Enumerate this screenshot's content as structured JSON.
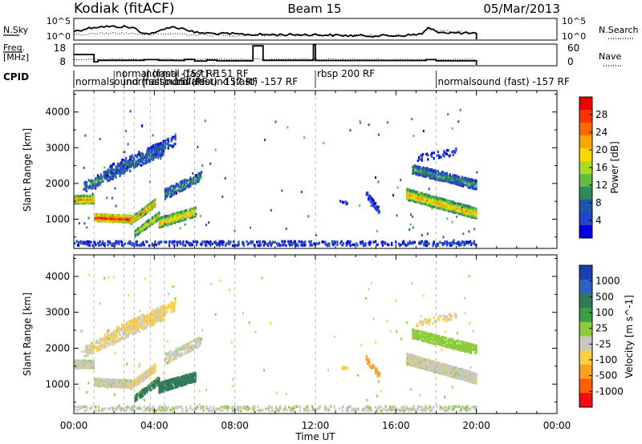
{
  "header": {
    "station": "Kodiak (fitACF)",
    "beam": "Beam 15",
    "date": "05/Mar/2013"
  },
  "sky_panel": {
    "left_label": "N.Sky",
    "right_label": "N.Search",
    "left_ticks": [
      "10^5",
      "10^0"
    ],
    "right_ticks": [
      "10^5",
      "10^0"
    ],
    "solid_line_levels": [
      0.4,
      0.6,
      0.62,
      0.62,
      0.55,
      0.3,
      0.3,
      0.55,
      0.6,
      0.52,
      0.35,
      0.3,
      0.28,
      0.25,
      0.25,
      0.25,
      0.25,
      0.22,
      0.2,
      0.2,
      0.2,
      0.22,
      0.25,
      0.3,
      0.55,
      0.4,
      0.35,
      0.33,
      0.3
    ],
    "dotted_line_levels": [
      0.22,
      0.3,
      0.32,
      0.32,
      0.3,
      0.25,
      0.25,
      0.28,
      0.3,
      0.28,
      0.24,
      0.22,
      0.22,
      0.22,
      0.22,
      0.22,
      0.22,
      0.22,
      0.22,
      0.22,
      0.22,
      0.22,
      0.25,
      0.3,
      0.5,
      0.45,
      0.4,
      0.38,
      0.35
    ],
    "level_times_hr": [
      0,
      1,
      1.5,
      2.5,
      3,
      3.5,
      4,
      4.5,
      5,
      5.5,
      6,
      7,
      8,
      9,
      10,
      11,
      12,
      13,
      14,
      15,
      16,
      16.5,
      17,
      17.3,
      17.6,
      18,
      18.5,
      19,
      20
    ]
  },
  "freq_panel": {
    "left_label_top": "Freq.",
    "left_label_bottom": "[MHz]",
    "right_label": "Nave",
    "left_ticks": [
      "18",
      "8"
    ],
    "right_ticks": [
      "60",
      "0"
    ],
    "freq_step_times_hr": [
      0,
      1,
      1.2,
      3.5,
      4.2,
      5,
      5.5,
      6,
      6.6,
      7.1,
      8.6,
      8.9,
      9.4,
      11.7,
      11.9,
      12,
      17,
      17.5,
      18,
      20
    ],
    "freq_step_values_mhz": [
      13.2,
      9.8,
      10.5,
      10.8,
      10.5,
      10.4,
      10.9,
      10.2,
      10.6,
      10.3,
      10.3,
      17.2,
      10.5,
      10.5,
      17.5,
      10.4,
      10.4,
      10.8,
      10.3,
      10.3
    ]
  },
  "cpid": {
    "label": "CPID",
    "segments": [
      {
        "text": "normalsound (fast) -157 RF",
        "start_hr": 0.0,
        "row": 1
      },
      {
        "text": "normal (fast) -157 RF",
        "start_hr": 2.0,
        "row": 0
      },
      {
        "text": "normalsound (fast) -157 RF",
        "start_hr": 2.5,
        "row": 1
      },
      {
        "text": "normal (fast) -151 RF",
        "start_hr": 3.5,
        "row": 0
      },
      {
        "text": "normalsound (fast) -157 RF",
        "start_hr": 4.5,
        "row": 1
      },
      {
        "text": "rbsp 200 RF",
        "start_hr": 12.0,
        "row": 0
      },
      {
        "text": "normalsound (fast) -157 RF",
        "start_hr": 18.0,
        "row": 1
      }
    ]
  },
  "power_colorbar": {
    "label": "Power [dB]",
    "ticks": [
      "28",
      "24",
      "20",
      "16",
      "12",
      "8",
      "4"
    ],
    "colors": [
      "#0000dd",
      "#2244cc",
      "#2255aa",
      "#2e8b57",
      "#66bb44",
      "#aadd22",
      "#ffd700",
      "#ffa500",
      "#ff6a00",
      "#ff3300",
      "#ee0000"
    ]
  },
  "velocity_colorbar": {
    "label": "Velocity [m s^-1]",
    "ticks": [
      "1000",
      "500",
      "100",
      "25",
      "-25",
      "-100",
      "-500",
      "-1000"
    ],
    "colors": [
      "#1a3fb0",
      "#2c62c4",
      "#2f7a5a",
      "#3aa040",
      "#8ccc3a",
      "#c8c8c0",
      "#ffd040",
      "#ffa020",
      "#ff6000",
      "#ee1010"
    ]
  },
  "chart_data": {
    "type": "heatmap",
    "x_title": "Time UT",
    "y_title": "Slant Range [km]",
    "x_ticks": [
      "00:00",
      "04:00",
      "08:00",
      "12:00",
      "16:00",
      "20:00",
      "00:00"
    ],
    "x_range_hr": [
      0,
      24
    ],
    "y_ticks": [
      "1000",
      "2000",
      "3000",
      "4000"
    ],
    "y_range_km": [
      180,
      4600
    ],
    "data_ends_hr": 20,
    "scatter_bands": [
      {
        "name": "main",
        "t0": 0.0,
        "t1": 1.0,
        "r0": 1550,
        "r1": 1550,
        "w0": 240,
        "w1": 240,
        "power": 20,
        "velocity": 0,
        "density": 1.0
      },
      {
        "name": "main",
        "t0": 1.0,
        "t1": 2.8,
        "r0": 1050,
        "r1": 1000,
        "w0": 220,
        "w1": 220,
        "power": 24,
        "velocity": 0,
        "density": 1.0
      },
      {
        "name": "main",
        "t0": 2.8,
        "t1": 4.0,
        "r0": 950,
        "r1": 1450,
        "w0": 200,
        "w1": 220,
        "power": 20,
        "velocity": -20,
        "density": 0.9
      },
      {
        "name": "main",
        "t0": 3.0,
        "t1": 4.2,
        "r0": 600,
        "r1": 1100,
        "w0": 180,
        "w1": 220,
        "power": 16,
        "velocity": 120,
        "density": 0.8
      },
      {
        "name": "upper",
        "t0": 0.5,
        "t1": 4.5,
        "r0": 1900,
        "r1": 3000,
        "w0": 300,
        "w1": 400,
        "power": 10,
        "velocity": -20,
        "density": 0.45
      },
      {
        "name": "upper",
        "t0": 1.5,
        "t1": 5.0,
        "r0": 2300,
        "r1": 3200,
        "w0": 300,
        "w1": 300,
        "power": 8,
        "velocity": -40,
        "density": 0.3
      },
      {
        "name": "mid",
        "t0": 4.2,
        "t1": 6.0,
        "r0": 900,
        "r1": 1200,
        "w0": 300,
        "w1": 260,
        "power": 18,
        "velocity": 150,
        "density": 0.9
      },
      {
        "name": "mid",
        "t0": 4.5,
        "t1": 6.3,
        "r0": 1700,
        "r1": 2200,
        "w0": 300,
        "w1": 260,
        "power": 10,
        "velocity": 0,
        "density": 0.55
      },
      {
        "name": "rbsp",
        "t0": 13.3,
        "t1": 13.6,
        "r0": 1450,
        "r1": 1450,
        "w0": 80,
        "w1": 80,
        "power": 6,
        "velocity": -60,
        "density": 0.8
      },
      {
        "name": "late",
        "t0": 14.5,
        "t1": 15.2,
        "r0": 1700,
        "r1": 1200,
        "w0": 200,
        "w1": 200,
        "power": 6,
        "velocity": -300,
        "density": 0.5
      },
      {
        "name": "late",
        "t0": 16.5,
        "t1": 20.0,
        "r0": 1700,
        "r1": 1150,
        "w0": 320,
        "w1": 300,
        "power": 18,
        "velocity": 0,
        "density": 0.95
      },
      {
        "name": "late",
        "t0": 16.8,
        "t1": 20.0,
        "r0": 2400,
        "r1": 1950,
        "w0": 280,
        "w1": 260,
        "power": 10,
        "velocity": 60,
        "density": 0.7
      },
      {
        "name": "late",
        "t0": 17.0,
        "t1": 19.0,
        "r0": 2700,
        "r1": 2900,
        "w0": 200,
        "w1": 200,
        "power": 6,
        "velocity": -30,
        "density": 0.25
      },
      {
        "name": "ground",
        "t0": 0.0,
        "t1": 20.0,
        "r0": 320,
        "r1": 320,
        "w0": 140,
        "w1": 140,
        "power": 6,
        "velocity": 10,
        "density": 0.35
      }
    ],
    "dashed_marker_times_hr": [
      1.0,
      2.5,
      3.0,
      3.8,
      4.5,
      6.0,
      8.0,
      12.0,
      18.0
    ]
  }
}
